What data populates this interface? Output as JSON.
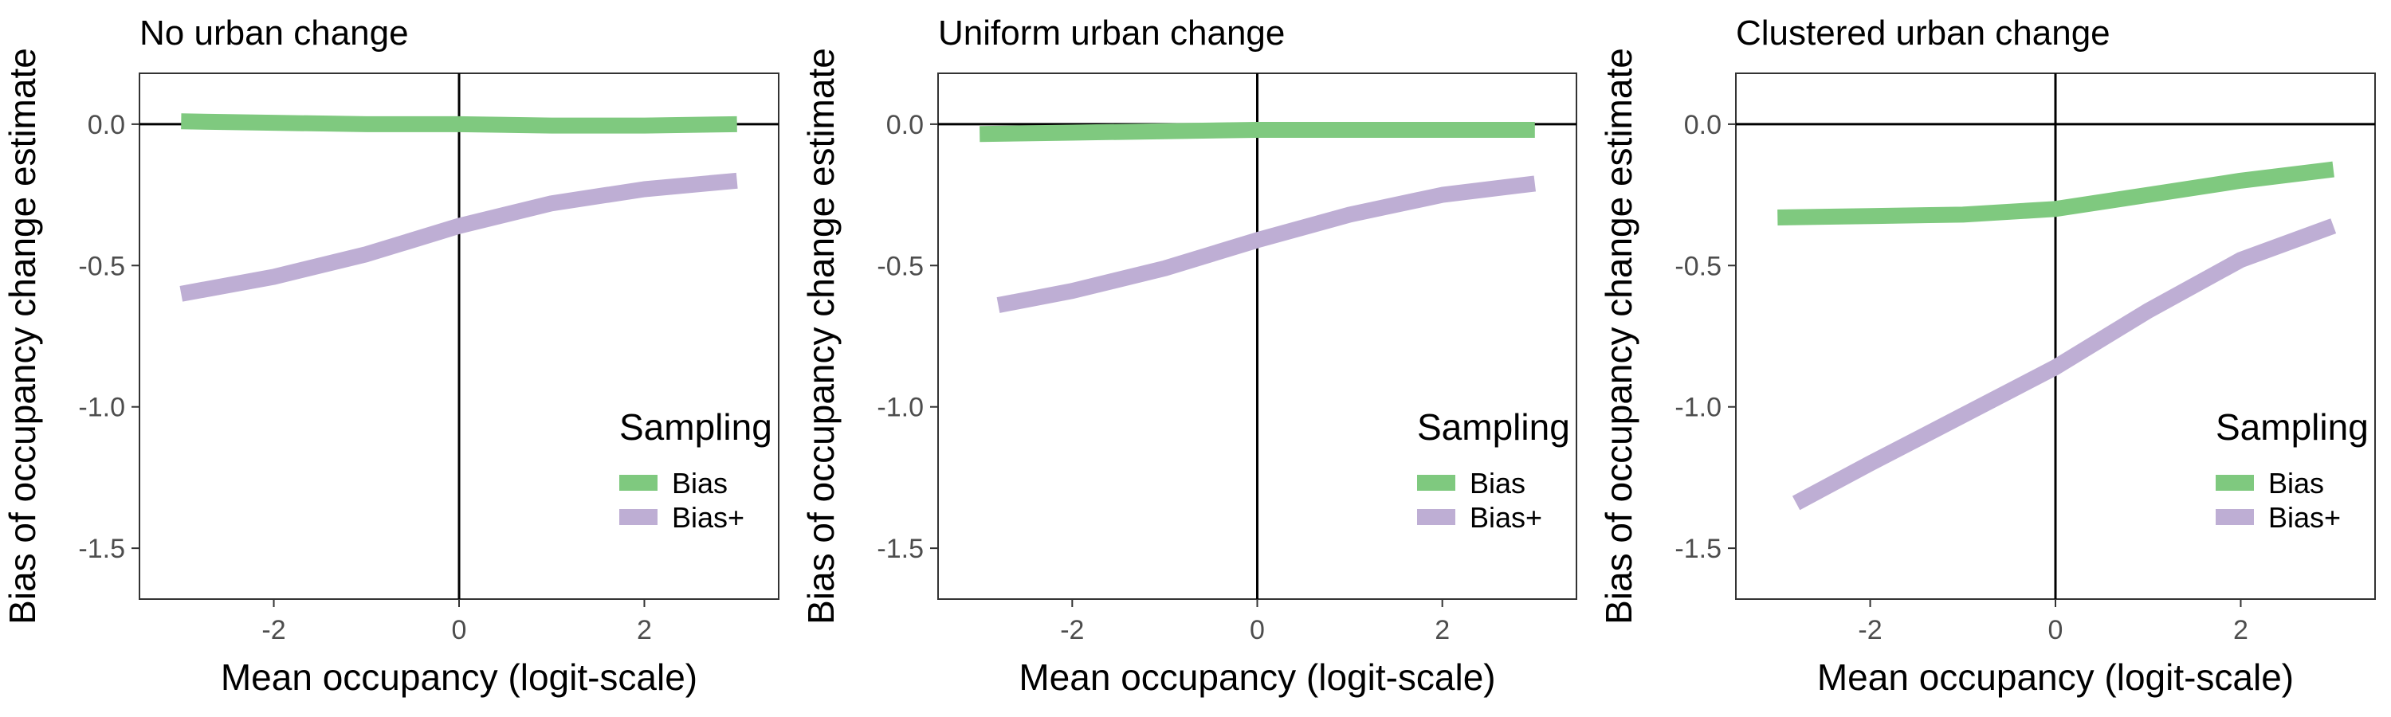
{
  "figure": {
    "colors": {
      "Bias": "#7fc97f",
      "Bias+": "#beaed4",
      "axis": "#333333",
      "tick_label": "#4d4d4d"
    }
  },
  "chart_data": [
    {
      "type": "line",
      "title": "No urban change",
      "xlabel": "Mean occupancy (logit-scale)",
      "ylabel": "Bias of occupancy change estimate",
      "xlim": [
        -3.45,
        3.45
      ],
      "ylim": [
        -1.68,
        0.18
      ],
      "xticks": [
        -2,
        0,
        2
      ],
      "yticks": [
        0.0,
        -0.5,
        -1.0,
        -1.5
      ],
      "xtick_labels": [
        "-2",
        "0",
        "2"
      ],
      "ytick_labels": [
        "0.0",
        "-0.5",
        "-1.0",
        "-1.5"
      ],
      "reference_lines": {
        "h": 0,
        "v": 0
      },
      "grid": false,
      "legend": {
        "title": "Sampling",
        "position": "bottom-right",
        "entries": [
          "Bias",
          "Bias+"
        ]
      },
      "series": [
        {
          "name": "Bias",
          "color": "#7fc97f",
          "x": [
            -3.0,
            -2.0,
            -1.0,
            0.0,
            1.0,
            2.0,
            3.0
          ],
          "y": [
            0.01,
            0.005,
            0.0,
            0.0,
            -0.005,
            -0.005,
            0.0
          ]
        },
        {
          "name": "Bias+",
          "color": "#beaed4",
          "x": [
            -3.0,
            -2.0,
            -1.0,
            0.0,
            1.0,
            2.0,
            3.0
          ],
          "y": [
            -0.6,
            -0.54,
            -0.46,
            -0.36,
            -0.28,
            -0.23,
            -0.2
          ]
        }
      ]
    },
    {
      "type": "line",
      "title": "Uniform urban change",
      "xlabel": "Mean occupancy (logit-scale)",
      "ylabel": "Bias of occupancy change estimate",
      "xlim": [
        -3.45,
        3.45
      ],
      "ylim": [
        -1.68,
        0.18
      ],
      "xticks": [
        -2,
        0,
        2
      ],
      "yticks": [
        0.0,
        -0.5,
        -1.0,
        -1.5
      ],
      "xtick_labels": [
        "-2",
        "0",
        "2"
      ],
      "ytick_labels": [
        "0.0",
        "-0.5",
        "-1.0",
        "-1.5"
      ],
      "reference_lines": {
        "h": 0,
        "v": 0
      },
      "grid": false,
      "legend": {
        "title": "Sampling",
        "position": "bottom-right",
        "entries": [
          "Bias",
          "Bias+"
        ]
      },
      "series": [
        {
          "name": "Bias",
          "color": "#7fc97f",
          "x": [
            -3.0,
            -2.0,
            -1.0,
            0.0,
            1.0,
            2.0,
            3.0
          ],
          "y": [
            -0.035,
            -0.03,
            -0.025,
            -0.02,
            -0.02,
            -0.02,
            -0.02
          ]
        },
        {
          "name": "Bias+",
          "color": "#beaed4",
          "x": [
            -2.8,
            -2.0,
            -1.0,
            0.0,
            1.0,
            2.0,
            3.0
          ],
          "y": [
            -0.64,
            -0.59,
            -0.51,
            -0.41,
            -0.32,
            -0.25,
            -0.21
          ]
        }
      ]
    },
    {
      "type": "line",
      "title": "Clustered urban change",
      "xlabel": "Mean occupancy (logit-scale)",
      "ylabel": "Bias of occupancy change estimate",
      "xlim": [
        -3.45,
        3.45
      ],
      "ylim": [
        -1.68,
        0.18
      ],
      "xticks": [
        -2,
        0,
        2
      ],
      "yticks": [
        0.0,
        -0.5,
        -1.0,
        -1.5
      ],
      "xtick_labels": [
        "-2",
        "0",
        "2"
      ],
      "ytick_labels": [
        "0.0",
        "-0.5",
        "-1.0",
        "-1.5"
      ],
      "reference_lines": {
        "h": 0,
        "v": 0
      },
      "grid": false,
      "legend": {
        "title": "Sampling",
        "position": "bottom-right",
        "entries": [
          "Bias",
          "Bias+"
        ]
      },
      "series": [
        {
          "name": "Bias",
          "color": "#7fc97f",
          "x": [
            -3.0,
            -2.0,
            -1.0,
            0.0,
            1.0,
            2.0,
            3.0
          ],
          "y": [
            -0.33,
            -0.325,
            -0.32,
            -0.3,
            -0.25,
            -0.2,
            -0.16
          ]
        },
        {
          "name": "Bias+",
          "color": "#beaed4",
          "x": [
            -2.8,
            -2.0,
            -1.0,
            0.0,
            1.0,
            2.0,
            3.0
          ],
          "y": [
            -1.34,
            -1.2,
            -1.03,
            -0.86,
            -0.66,
            -0.48,
            -0.36
          ]
        }
      ]
    }
  ]
}
